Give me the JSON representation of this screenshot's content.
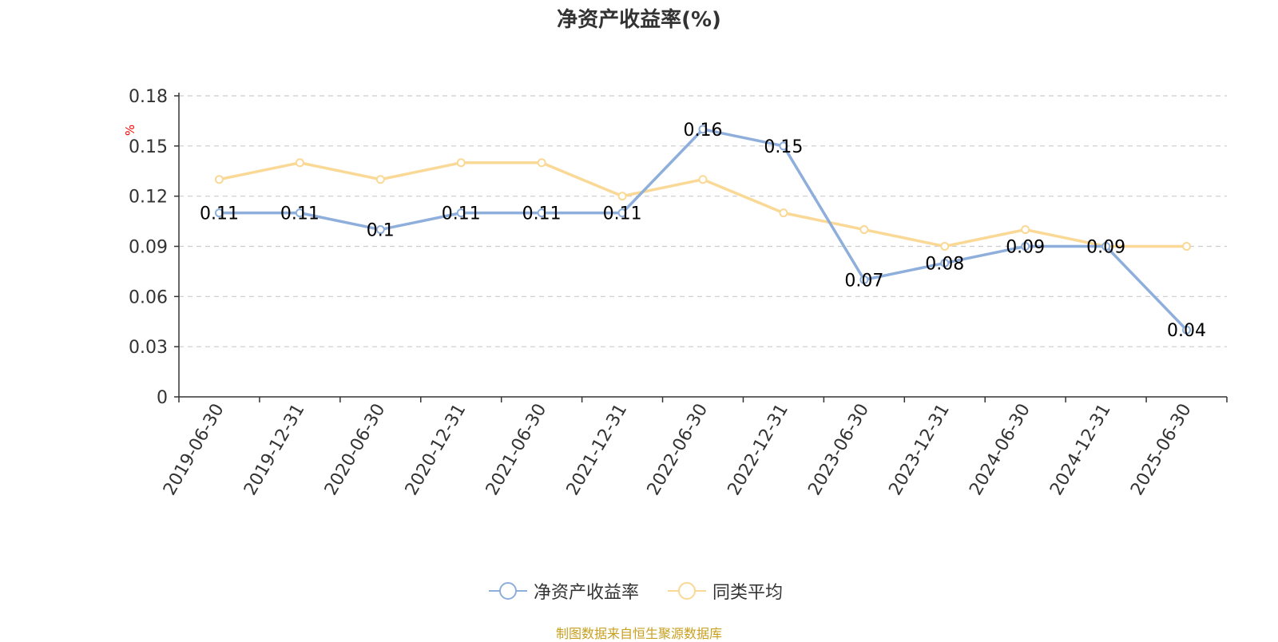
{
  "title": "净资产收益率(%)",
  "source_note": "制图数据来自恒生聚源数据库",
  "colors": {
    "series_1": "#8eaedb",
    "series_2": "#fad896",
    "unit_label": "#ff0000",
    "source_note": "#c8a020",
    "axis": "#333333",
    "grid": "#cccccc"
  },
  "chart_data": {
    "type": "line",
    "title": "净资产收益率(%)",
    "ylabel": "%",
    "xlabel": "",
    "ylim": [
      0,
      0.18
    ],
    "yticks": [
      "0",
      "0.03",
      "0.06",
      "0.09",
      "0.12",
      "0.15",
      "0.18"
    ],
    "grid": true,
    "legend_position": "bottom-center",
    "categories": [
      "2019-06-30",
      "2019-12-31",
      "2020-06-30",
      "2020-12-31",
      "2021-06-30",
      "2021-12-31",
      "2022-06-30",
      "2022-12-31",
      "2023-06-30",
      "2023-12-31",
      "2024-06-30",
      "2024-12-31",
      "2025-06-30"
    ],
    "series": [
      {
        "name": "净资产收益率",
        "values": [
          0.11,
          0.11,
          0.1,
          0.11,
          0.11,
          0.11,
          0.16,
          0.15,
          0.07,
          0.08,
          0.09,
          0.09,
          0.04
        ],
        "data_labels": [
          "0.11",
          "0.11",
          "0.1",
          "0.11",
          "0.11",
          "0.11",
          "0.16",
          "0.15",
          "0.07",
          "0.08",
          "0.09",
          "0.09",
          "0.04"
        ]
      },
      {
        "name": "同类平均",
        "values": [
          0.13,
          0.14,
          0.13,
          0.14,
          0.14,
          0.12,
          0.13,
          0.11,
          0.1,
          0.09,
          0.1,
          0.09,
          0.09
        ]
      }
    ]
  }
}
